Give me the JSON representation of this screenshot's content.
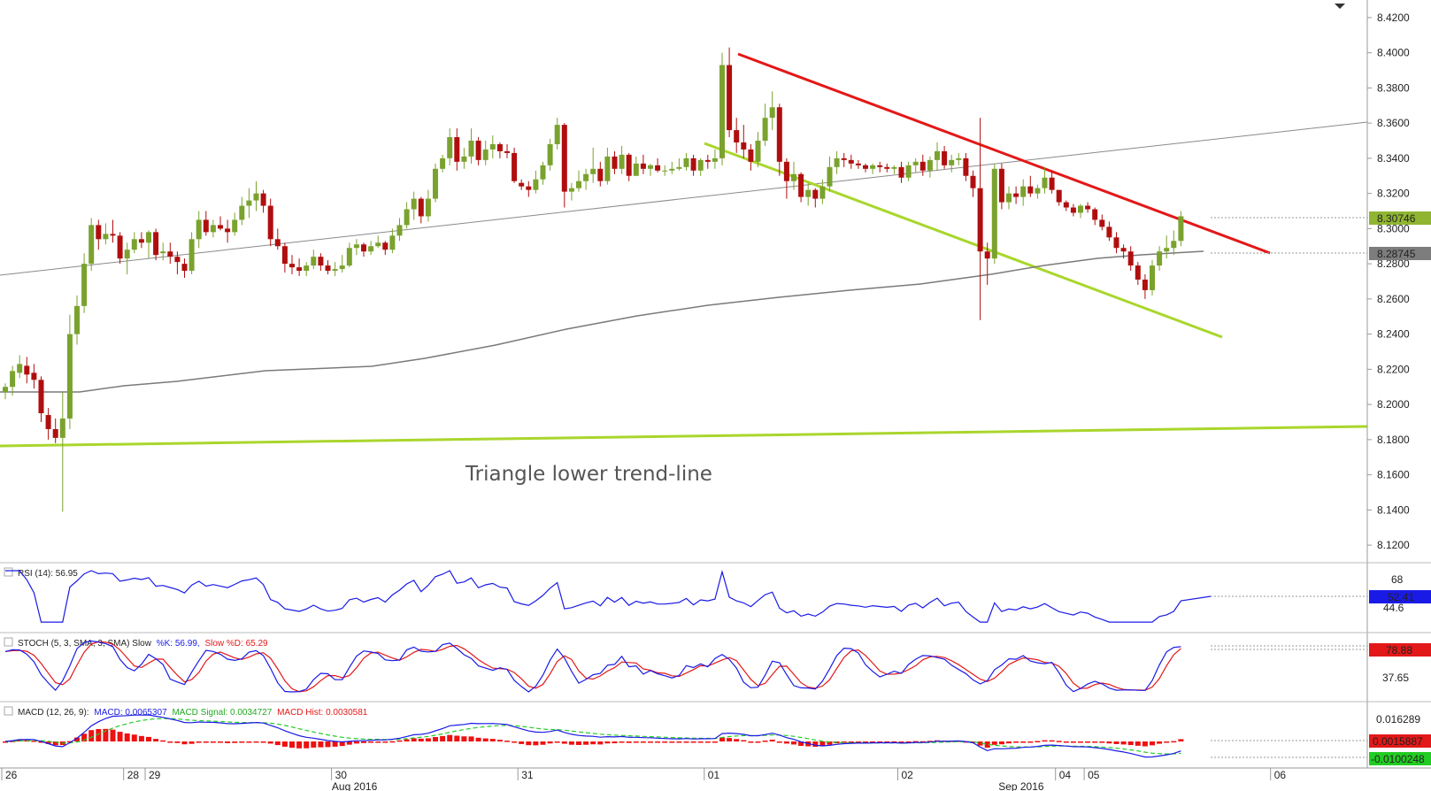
{
  "chart_data": {
    "type": "candlestick",
    "annotation": "Triangle lower trend-line",
    "price_axis": {
      "min": 8.11,
      "max": 8.43,
      "ticks": [
        "8.4200",
        "8.4000",
        "8.3800",
        "8.3600",
        "8.3400",
        "8.3200",
        "8.3000",
        "8.2800",
        "8.2600",
        "8.2400",
        "8.2200",
        "8.2000",
        "8.1800",
        "8.1600",
        "8.1400",
        "8.1200"
      ],
      "last_price": "8.30746",
      "ma_price": "8.28745"
    },
    "time_axis": {
      "day_labels": [
        {
          "text": "26",
          "i": 0
        },
        {
          "text": "28",
          "i": 17
        },
        {
          "text": "29",
          "i": 20
        },
        {
          "text": "30",
          "i": 46
        },
        {
          "text": "31",
          "i": 72
        },
        {
          "text": "01",
          "i": 98
        },
        {
          "text": "02",
          "i": 125
        },
        {
          "text": "04",
          "i": 147
        },
        {
          "text": "05",
          "i": 151
        },
        {
          "text": "06",
          "i": 177
        }
      ],
      "month_labels": [
        {
          "text": "Aug 2016",
          "i": 49
        },
        {
          "text": "Sep 2016",
          "i": 142
        }
      ]
    },
    "candles": [
      [
        8.207,
        8.212,
        8.203,
        8.21
      ],
      [
        8.21,
        8.222,
        8.205,
        8.219
      ],
      [
        8.218,
        8.228,
        8.215,
        8.223
      ],
      [
        8.222,
        8.227,
        8.212,
        8.217
      ],
      [
        8.218,
        8.223,
        8.209,
        8.214
      ],
      [
        8.214,
        8.216,
        8.19,
        8.195
      ],
      [
        8.194,
        8.198,
        8.18,
        8.186
      ],
      [
        8.186,
        8.192,
        8.178,
        8.181
      ],
      [
        8.181,
        8.207,
        8.139,
        8.192
      ],
      [
        8.192,
        8.251,
        8.186,
        8.24
      ],
      [
        8.24,
        8.262,
        8.234,
        8.256
      ],
      [
        8.256,
        8.286,
        8.252,
        8.28
      ],
      [
        8.28,
        8.306,
        8.276,
        8.302
      ],
      [
        8.302,
        8.305,
        8.288,
        8.294
      ],
      [
        8.294,
        8.303,
        8.291,
        8.297
      ],
      [
        8.297,
        8.305,
        8.292,
        8.296
      ],
      [
        8.296,
        8.298,
        8.28,
        8.283
      ],
      [
        8.283,
        8.292,
        8.274,
        8.288
      ],
      [
        8.288,
        8.298,
        8.286,
        8.294
      ],
      [
        8.294,
        8.298,
        8.289,
        8.292
      ],
      [
        8.292,
        8.299,
        8.283,
        8.298
      ],
      [
        8.298,
        8.3,
        8.282,
        8.285
      ],
      [
        8.286,
        8.292,
        8.282,
        8.287
      ],
      [
        8.287,
        8.292,
        8.28,
        8.284
      ],
      [
        8.284,
        8.287,
        8.274,
        8.281
      ],
      [
        8.28,
        8.283,
        8.272,
        8.276
      ],
      [
        8.276,
        8.298,
        8.274,
        8.294
      ],
      [
        8.294,
        8.31,
        8.289,
        8.305
      ],
      [
        8.305,
        8.31,
        8.296,
        8.298
      ],
      [
        8.298,
        8.305,
        8.295,
        8.302
      ],
      [
        8.302,
        8.307,
        8.299,
        8.3
      ],
      [
        8.3,
        8.305,
        8.292,
        8.298
      ],
      [
        8.298,
        8.309,
        8.296,
        8.305
      ],
      [
        8.305,
        8.318,
        8.302,
        8.313
      ],
      [
        8.313,
        8.323,
        8.306,
        8.316
      ],
      [
        8.316,
        8.327,
        8.31,
        8.32
      ],
      [
        8.32,
        8.322,
        8.309,
        8.313
      ],
      [
        8.313,
        8.317,
        8.29,
        8.294
      ],
      [
        8.294,
        8.3,
        8.288,
        8.29
      ],
      [
        8.29,
        8.292,
        8.275,
        8.28
      ],
      [
        8.28,
        8.285,
        8.274,
        8.278
      ],
      [
        8.278,
        8.283,
        8.273,
        8.276
      ],
      [
        8.276,
        8.281,
        8.273,
        8.279
      ],
      [
        8.279,
        8.288,
        8.277,
        8.284
      ],
      [
        8.284,
        8.286,
        8.276,
        8.279
      ],
      [
        8.279,
        8.282,
        8.274,
        8.276
      ],
      [
        8.276,
        8.281,
        8.273,
        8.277
      ],
      [
        8.277,
        8.285,
        8.275,
        8.279
      ],
      [
        8.279,
        8.292,
        8.278,
        8.289
      ],
      [
        8.289,
        8.294,
        8.285,
        8.291
      ],
      [
        8.291,
        8.292,
        8.284,
        8.287
      ],
      [
        8.287,
        8.293,
        8.285,
        8.29
      ],
      [
        8.29,
        8.296,
        8.289,
        8.292
      ],
      [
        8.292,
        8.293,
        8.285,
        8.288
      ],
      [
        8.288,
        8.3,
        8.286,
        8.296
      ],
      [
        8.296,
        8.306,
        8.293,
        8.302
      ],
      [
        8.302,
        8.315,
        8.3,
        8.311
      ],
      [
        8.311,
        8.321,
        8.305,
        8.317
      ],
      [
        8.317,
        8.318,
        8.303,
        8.307
      ],
      [
        8.307,
        8.322,
        8.304,
        8.317
      ],
      [
        8.317,
        8.337,
        8.315,
        8.334
      ],
      [
        8.334,
        8.342,
        8.332,
        8.34
      ],
      [
        8.34,
        8.357,
        8.336,
        8.352
      ],
      [
        8.352,
        8.357,
        8.333,
        8.338
      ],
      [
        8.338,
        8.346,
        8.334,
        8.341
      ],
      [
        8.341,
        8.357,
        8.337,
        8.35
      ],
      [
        8.35,
        8.352,
        8.336,
        8.339
      ],
      [
        8.339,
        8.35,
        8.336,
        8.345
      ],
      [
        8.345,
        8.353,
        8.34,
        8.348
      ],
      [
        8.348,
        8.349,
        8.34,
        8.344
      ],
      [
        8.344,
        8.348,
        8.34,
        8.343
      ],
      [
        8.343,
        8.346,
        8.326,
        8.327
      ],
      [
        8.326,
        8.328,
        8.322,
        8.324
      ],
      [
        8.324,
        8.327,
        8.318,
        8.322
      ],
      [
        8.322,
        8.333,
        8.32,
        8.328
      ],
      [
        8.328,
        8.338,
        8.325,
        8.336
      ],
      [
        8.336,
        8.351,
        8.333,
        8.348
      ],
      [
        8.348,
        8.363,
        8.345,
        8.359
      ],
      [
        8.359,
        8.36,
        8.312,
        8.321
      ],
      [
        8.321,
        8.326,
        8.316,
        8.323
      ],
      [
        8.323,
        8.333,
        8.321,
        8.327
      ],
      [
        8.327,
        8.334,
        8.322,
        8.331
      ],
      [
        8.331,
        8.346,
        8.326,
        8.334
      ],
      [
        8.334,
        8.338,
        8.324,
        8.327
      ],
      [
        8.327,
        8.346,
        8.325,
        8.341
      ],
      [
        8.341,
        8.344,
        8.331,
        8.334
      ],
      [
        8.334,
        8.347,
        8.331,
        8.342
      ],
      [
        8.342,
        8.343,
        8.327,
        8.33
      ],
      [
        8.33,
        8.341,
        8.33,
        8.337
      ],
      [
        8.337,
        8.342,
        8.331,
        8.334
      ],
      [
        8.334,
        8.337,
        8.33,
        8.336
      ],
      [
        8.336,
        8.34,
        8.332,
        8.333
      ],
      [
        8.333,
        8.336,
        8.33,
        8.333
      ],
      [
        8.333,
        8.338,
        8.331,
        8.334
      ],
      [
        8.334,
        8.34,
        8.333,
        8.335
      ],
      [
        8.335,
        8.343,
        8.333,
        8.34
      ],
      [
        8.34,
        8.342,
        8.33,
        8.333
      ],
      [
        8.333,
        8.34,
        8.33,
        8.339
      ],
      [
        8.339,
        8.342,
        8.334,
        8.338
      ],
      [
        8.338,
        8.345,
        8.334,
        8.34
      ],
      [
        8.34,
        8.4,
        8.336,
        8.393
      ],
      [
        8.393,
        8.403,
        8.352,
        8.356
      ],
      [
        8.356,
        8.363,
        8.343,
        8.349
      ],
      [
        8.349,
        8.359,
        8.34,
        8.345
      ],
      [
        8.345,
        8.348,
        8.333,
        8.338
      ],
      [
        8.338,
        8.355,
        8.335,
        8.35
      ],
      [
        8.35,
        8.371,
        8.347,
        8.363
      ],
      [
        8.363,
        8.378,
        8.356,
        8.369
      ],
      [
        8.369,
        8.371,
        8.33,
        8.338
      ],
      [
        8.338,
        8.34,
        8.317,
        8.327
      ],
      [
        8.327,
        8.338,
        8.322,
        8.331
      ],
      [
        8.331,
        8.332,
        8.315,
        8.318
      ],
      [
        8.318,
        8.326,
        8.313,
        8.322
      ],
      [
        8.322,
        8.323,
        8.312,
        8.317
      ],
      [
        8.317,
        8.328,
        8.314,
        8.324
      ],
      [
        8.324,
        8.341,
        8.321,
        8.335
      ],
      [
        8.335,
        8.344,
        8.331,
        8.34
      ],
      [
        8.34,
        8.343,
        8.335,
        8.339
      ],
      [
        8.339,
        8.342,
        8.334,
        8.337
      ],
      [
        8.337,
        8.339,
        8.334,
        8.336
      ],
      [
        8.336,
        8.337,
        8.332,
        8.334
      ],
      [
        8.334,
        8.337,
        8.331,
        8.336
      ],
      [
        8.336,
        8.338,
        8.332,
        8.335
      ],
      [
        8.335,
        8.337,
        8.332,
        8.334
      ],
      [
        8.334,
        8.336,
        8.331,
        8.335
      ],
      [
        8.335,
        8.338,
        8.326,
        8.329
      ],
      [
        8.329,
        8.338,
        8.327,
        8.336
      ],
      [
        8.336,
        8.34,
        8.332,
        8.338
      ],
      [
        8.338,
        8.342,
        8.33,
        8.333
      ],
      [
        8.333,
        8.341,
        8.329,
        8.339
      ],
      [
        8.339,
        8.349,
        8.333,
        8.344
      ],
      [
        8.344,
        8.347,
        8.334,
        8.336
      ],
      [
        8.336,
        8.342,
        8.332,
        8.339
      ],
      [
        8.339,
        8.343,
        8.336,
        8.34
      ],
      [
        8.34,
        8.343,
        8.327,
        8.33
      ],
      [
        8.33,
        8.333,
        8.318,
        8.323
      ],
      [
        8.323,
        8.363,
        8.248,
        8.287
      ],
      [
        8.287,
        8.292,
        8.268,
        8.283
      ],
      [
        8.283,
        8.337,
        8.28,
        8.334
      ],
      [
        8.334,
        8.337,
        8.311,
        8.315
      ],
      [
        8.315,
        8.324,
        8.311,
        8.32
      ],
      [
        8.32,
        8.324,
        8.314,
        8.318
      ],
      [
        8.318,
        8.328,
        8.313,
        8.324
      ],
      [
        8.324,
        8.33,
        8.318,
        8.32
      ],
      [
        8.32,
        8.325,
        8.317,
        8.323
      ],
      [
        8.323,
        8.335,
        8.32,
        8.329
      ],
      [
        8.329,
        8.333,
        8.32,
        8.322
      ],
      [
        8.322,
        8.322,
        8.313,
        8.315
      ],
      [
        8.315,
        8.316,
        8.31,
        8.312
      ],
      [
        8.312,
        8.314,
        8.307,
        8.309
      ],
      [
        8.309,
        8.314,
        8.306,
        8.313
      ],
      [
        8.313,
        8.315,
        8.309,
        8.311
      ],
      [
        8.311,
        8.312,
        8.302,
        8.305
      ],
      [
        8.305,
        8.308,
        8.299,
        8.301
      ],
      [
        8.301,
        8.304,
        8.293,
        8.295
      ],
      [
        8.295,
        8.298,
        8.286,
        8.289
      ],
      [
        8.289,
        8.291,
        8.283,
        8.287
      ],
      [
        8.287,
        8.29,
        8.276,
        8.279
      ],
      [
        8.279,
        8.281,
        8.268,
        8.271
      ],
      [
        8.271,
        8.274,
        8.26,
        8.265
      ],
      [
        8.265,
        8.282,
        8.262,
        8.279
      ],
      [
        8.279,
        8.29,
        8.276,
        8.287
      ],
      [
        8.287,
        8.296,
        8.283,
        8.289
      ],
      [
        8.289,
        8.299,
        8.285,
        8.293
      ],
      [
        8.293,
        8.31,
        8.29,
        8.307
      ]
    ],
    "indicators": {
      "rsi": {
        "label": "RSI (14): 56.95",
        "level_label": "68",
        "level2_label": "44.6",
        "current": "52.41"
      },
      "stoch": {
        "label_main": "STOCH (5, 3, SMA, 3, SMA) Slow",
        "label_k": "%K: 56.99,",
        "label_d": "Slow %D: 65.29",
        "level_label": "37.65",
        "current": "78.88"
      },
      "macd": {
        "label_main": "MACD (12, 26, 9):",
        "label_macd": "MACD: 0.0065307",
        "label_signal": "MACD Signal: 0.0034727",
        "label_hist": "MACD Hist: 0.0030581",
        "level_label": "0.016289",
        "current_hist": "0.0015887",
        "current_signal": "-0.0100248"
      }
    },
    "colors": {
      "up": "#7aa22e",
      "down": "#b00e0e",
      "red_line": "#e31818",
      "green_line": "#a9d62c",
      "gray_line": "#888888",
      "blue": "#1a1ae6",
      "red": "#e31818",
      "green": "#22cc22"
    }
  }
}
